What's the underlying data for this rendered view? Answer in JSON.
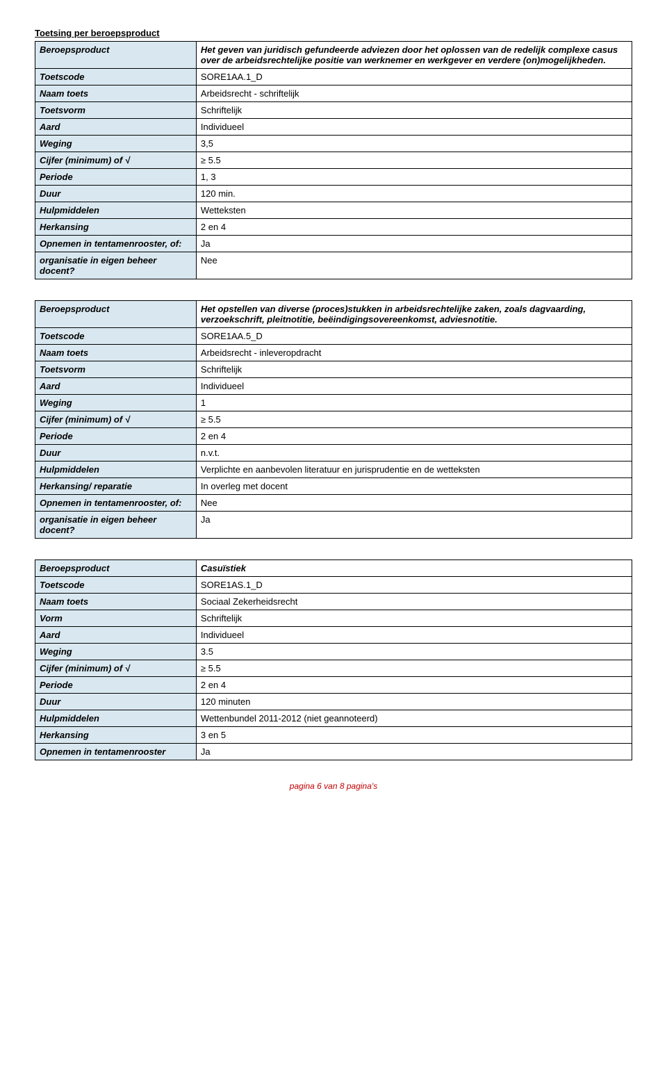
{
  "section_title": "Toetsing per beroepsproduct",
  "tables": [
    {
      "rows": [
        {
          "label": "Beroepsproduct",
          "value": "Het geven van juridisch gefundeerde adviezen door het oplossen van de redelijk complexe casus over de arbeidsrechtelijke positie van werknemer en werkgever en verdere (on)mogelijkheden.",
          "boldItalic": true
        },
        {
          "label": "Toetscode",
          "value": "SORE1AA.1_D"
        },
        {
          "label": "Naam toets",
          "value": "Arbeidsrecht - schriftelijk"
        },
        {
          "label": "Toetsvorm",
          "value": "Schriftelijk"
        },
        {
          "label": "Aard",
          "value": "Individueel"
        },
        {
          "label": "Weging",
          "value": "3,5"
        },
        {
          "label": "Cijfer (minimum) of √",
          "value": "≥ 5.5"
        },
        {
          "label": "Periode",
          "value": "1, 3"
        },
        {
          "label": "Duur",
          "value": "120 min."
        },
        {
          "label": "Hulpmiddelen",
          "value": "Wetteksten"
        },
        {
          "label": "Herkansing",
          "value": "2 en 4"
        },
        {
          "label": "Opnemen in tentamenrooster, of:",
          "value": "Ja"
        },
        {
          "label": "organisatie in eigen beheer docent?",
          "value": "Nee"
        }
      ]
    },
    {
      "rows": [
        {
          "label": "Beroepsproduct",
          "value": "Het opstellen van diverse (proces)stukken in arbeidsrechtelijke zaken, zoals dagvaarding, verzoekschrift, pleitnotitie, beëindigingsovereenkomst, adviesnotitie.",
          "boldItalic": true
        },
        {
          "label": "Toetscode",
          "value": "SORE1AA.5_D"
        },
        {
          "label": "Naam toets",
          "value": "Arbeidsrecht - inleveropdracht"
        },
        {
          "label": "Toetsvorm",
          "value": "Schriftelijk"
        },
        {
          "label": "Aard",
          "value": "Individueel"
        },
        {
          "label": "Weging",
          "value": "1"
        },
        {
          "label": "Cijfer (minimum) of √",
          "value": "≥ 5.5"
        },
        {
          "label": "Periode",
          "value": "2 en 4"
        },
        {
          "label": "Duur",
          "value": "n.v.t."
        },
        {
          "label": "Hulpmiddelen",
          "value": "Verplichte en aanbevolen literatuur en jurisprudentie en de wetteksten"
        },
        {
          "label": "Herkansing/ reparatie",
          "value": "In overleg met docent"
        },
        {
          "label": "Opnemen in tentamenrooster, of:",
          "value": "Nee"
        },
        {
          "label": "organisatie in eigen beheer docent?",
          "value": "Ja"
        }
      ]
    },
    {
      "rows": [
        {
          "label": "Beroepsproduct",
          "value": "Casuïstiek",
          "boldItalic": true
        },
        {
          "label": "Toetscode",
          "value": "SORE1AS.1_D"
        },
        {
          "label": "Naam toets",
          "value": "Sociaal Zekerheidsrecht"
        },
        {
          "label": "Vorm",
          "value": "Schriftelijk"
        },
        {
          "label": "Aard",
          "value": "Individueel"
        },
        {
          "label": "Weging",
          "value": "3.5"
        },
        {
          "label": "Cijfer (minimum) of √",
          "value": "≥ 5.5"
        },
        {
          "label": "Periode",
          "value": "2 en 4"
        },
        {
          "label": "Duur",
          "value": "120 minuten"
        },
        {
          "label": "Hulpmiddelen",
          "value": "Wettenbundel 2011-2012 (niet geannoteerd)"
        },
        {
          "label": "Herkansing",
          "value": "3 en 5"
        },
        {
          "label": "Opnemen in tentamenrooster",
          "value": "Ja"
        }
      ]
    }
  ],
  "footer": "pagina 6 van 8 pagina's"
}
